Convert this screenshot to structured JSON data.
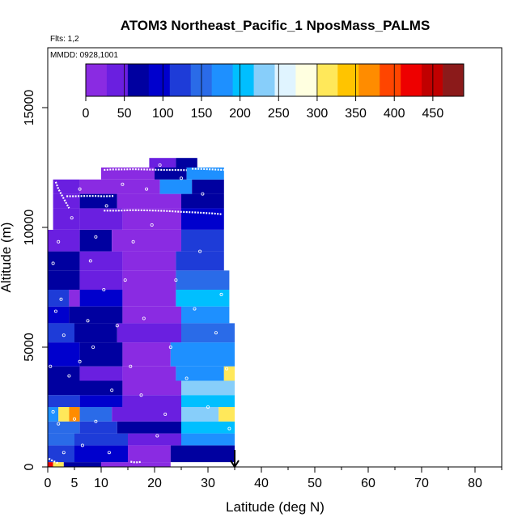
{
  "chart_data": {
    "type": "heatmap",
    "title": "ATOM3 Northeast_Pacific_1 NposMass_PALMS",
    "flights_label": "Flts: 1,2",
    "date_label": "MMDD: 0928,1001",
    "xlabel": "Latitude (deg N)",
    "ylabel": "Altitude (m)",
    "xlim": [
      0,
      85
    ],
    "ylim": [
      0,
      17500
    ],
    "x_ticks_major": [
      0,
      10,
      20,
      30,
      40,
      50,
      60,
      70,
      80
    ],
    "x_tick_labels": [
      "0",
      "5",
      "10",
      "20",
      "30",
      "40",
      "50",
      "60",
      "70",
      "80"
    ],
    "x_tick_label_values": [
      0,
      5,
      10,
      20,
      30,
      40,
      50,
      60,
      70,
      80
    ],
    "x_ticks_minor": [
      5,
      15,
      25,
      35,
      45,
      55,
      65,
      75,
      85
    ],
    "y_ticks": [
      0,
      5000,
      10000,
      15000
    ],
    "y_tick_labels": [
      "0",
      "5000",
      "10000",
      "15000"
    ],
    "colorbar": {
      "range": [
        0,
        490
      ],
      "tick_values": [
        0,
        50,
        100,
        150,
        200,
        250,
        300,
        350,
        400,
        450
      ],
      "tick_labels": [
        "0",
        "50",
        "100",
        "150",
        "200",
        "250",
        "300",
        "350",
        "400",
        "450"
      ],
      "colors": [
        "#8a2be2",
        "#6a1fe0",
        "#0000a0",
        "#0000cd",
        "#1e3cd8",
        "#2a6be8",
        "#1e90ff",
        "#00bfff",
        "#87cefa",
        "#e0f4ff",
        "#ffffe0",
        "#ffe85a",
        "#ffc400",
        "#ff8c00",
        "#ff4500",
        "#ee0000",
        "#c00000",
        "#8b1a1a"
      ]
    },
    "marker_latitude": 35,
    "bands": [
      {
        "y0": 0,
        "y1": 200,
        "x0": 0,
        "x1": 35,
        "segments": [
          [
            0,
            1,
            420
          ],
          [
            1,
            3,
            300
          ],
          [
            3,
            10,
            80
          ],
          [
            10,
            23,
            20
          ]
        ]
      },
      {
        "y0": 200,
        "y1": 900,
        "x0": 0,
        "x1": 35,
        "segments": [
          [
            0,
            5,
            130
          ],
          [
            5,
            15,
            100
          ],
          [
            15,
            23,
            15
          ],
          [
            23,
            35,
            70
          ]
        ]
      },
      {
        "y0": 900,
        "y1": 1400,
        "x0": 0,
        "x1": 35,
        "segments": [
          [
            0,
            5,
            160
          ],
          [
            5,
            15,
            120
          ],
          [
            15,
            25,
            40
          ],
          [
            25,
            35,
            170
          ]
        ]
      },
      {
        "y0": 1400,
        "y1": 1900,
        "x0": 0,
        "x1": 35,
        "segments": [
          [
            0,
            6,
            150
          ],
          [
            6,
            13,
            110
          ],
          [
            13,
            25,
            60
          ],
          [
            25,
            35,
            200
          ]
        ]
      },
      {
        "y0": 1900,
        "y1": 2500,
        "x0": 0,
        "x1": 35,
        "segments": [
          [
            0,
            2,
            170
          ],
          [
            2,
            4,
            300
          ],
          [
            4,
            6,
            360
          ],
          [
            6,
            12,
            160
          ],
          [
            12,
            25,
            50
          ],
          [
            25,
            32,
            240
          ],
          [
            32,
            35,
            320
          ]
        ]
      },
      {
        "y0": 2500,
        "y1": 3000,
        "x0": 0,
        "x1": 35,
        "segments": [
          [
            0,
            6,
            120
          ],
          [
            6,
            14,
            90
          ],
          [
            14,
            25,
            40
          ],
          [
            25,
            35,
            200
          ]
        ]
      },
      {
        "y0": 3000,
        "y1": 3600,
        "x0": 0,
        "x1": 35,
        "segments": [
          [
            0,
            5,
            80
          ],
          [
            5,
            14,
            60
          ],
          [
            14,
            25,
            20
          ],
          [
            25,
            35,
            220
          ]
        ]
      },
      {
        "y0": 3600,
        "y1": 4200,
        "x0": 0,
        "x1": 35,
        "segments": [
          [
            0,
            6,
            60
          ],
          [
            6,
            14,
            40
          ],
          [
            14,
            24,
            15
          ],
          [
            24,
            33,
            170
          ],
          [
            33,
            35,
            320
          ]
        ]
      },
      {
        "y0": 4200,
        "y1": 5200,
        "x0": 0,
        "x1": 35,
        "segments": [
          [
            0,
            6,
            90
          ],
          [
            6,
            14,
            70
          ],
          [
            14,
            23,
            20
          ],
          [
            23,
            35,
            180
          ]
        ]
      },
      {
        "y0": 5200,
        "y1": 6000,
        "x0": 0,
        "x1": 35,
        "segments": [
          [
            0,
            5,
            110
          ],
          [
            5,
            13,
            80
          ],
          [
            13,
            25,
            30
          ],
          [
            25,
            35,
            160
          ]
        ]
      },
      {
        "y0": 6000,
        "y1": 6700,
        "x0": 0,
        "x1": 34,
        "segments": [
          [
            0,
            4,
            100
          ],
          [
            4,
            14,
            70
          ],
          [
            14,
            25,
            25
          ],
          [
            25,
            34,
            170
          ]
        ]
      },
      {
        "y0": 6700,
        "y1": 7400,
        "x0": 0,
        "x1": 34,
        "segments": [
          [
            0,
            4,
            120
          ],
          [
            4,
            6,
            15
          ],
          [
            6,
            14,
            90
          ],
          [
            14,
            24,
            20
          ],
          [
            24,
            34,
            210
          ]
        ]
      },
      {
        "y0": 7400,
        "y1": 8200,
        "x0": 0,
        "x1": 34,
        "segments": [
          [
            0,
            6,
            80
          ],
          [
            6,
            14,
            50
          ],
          [
            14,
            24,
            20
          ],
          [
            24,
            34,
            160
          ]
        ]
      },
      {
        "y0": 8200,
        "y1": 9000,
        "x0": 0,
        "x1": 33,
        "segments": [
          [
            0,
            6,
            60
          ],
          [
            6,
            14,
            40
          ],
          [
            14,
            24,
            15
          ],
          [
            24,
            33,
            120
          ]
        ]
      },
      {
        "y0": 9000,
        "y1": 9900,
        "x0": 0,
        "x1": 33,
        "segments": [
          [
            0,
            6,
            50
          ],
          [
            6,
            12,
            60
          ],
          [
            12,
            25,
            15
          ],
          [
            25,
            33,
            110
          ]
        ]
      },
      {
        "y0": 9900,
        "y1": 10800,
        "x0": 1,
        "x1": 33,
        "segments": [
          [
            1,
            6,
            45
          ],
          [
            6,
            14,
            35
          ],
          [
            14,
            25,
            10
          ],
          [
            25,
            33,
            100
          ]
        ]
      },
      {
        "y0": 10800,
        "y1": 11400,
        "x0": 1,
        "x1": 33,
        "segments": [
          [
            1,
            6,
            30
          ],
          [
            6,
            13,
            70
          ],
          [
            13,
            25,
            15
          ],
          [
            25,
            33,
            80
          ]
        ]
      },
      {
        "y0": 11400,
        "y1": 12000,
        "x0": 1,
        "x1": 33,
        "segments": [
          [
            1,
            6,
            40
          ],
          [
            6,
            10,
            20
          ],
          [
            10,
            21,
            10
          ],
          [
            21,
            27,
            170
          ],
          [
            27,
            33,
            70
          ]
        ]
      },
      {
        "y0": 12000,
        "y1": 12500,
        "x0": 10,
        "x1": 33,
        "segments": [
          [
            10,
            20,
            15
          ],
          [
            20,
            26,
            80
          ],
          [
            26,
            33,
            180
          ]
        ]
      },
      {
        "y0": 12500,
        "y1": 12900,
        "x0": 19,
        "x1": 28,
        "segments": [
          [
            19,
            24,
            40
          ],
          [
            24,
            28,
            80
          ]
        ]
      }
    ],
    "flight_tracks": [
      {
        "x": [
          10.5,
          13,
          16,
          19,
          22,
          25,
          28,
          31,
          32.5
        ],
        "y": [
          10700,
          10700,
          10720,
          10710,
          10690,
          10650,
          10620,
          10580,
          10550
        ]
      },
      {
        "x": [
          3.5,
          5,
          7,
          9,
          10.5,
          12.5
        ],
        "y": [
          11300,
          11300,
          11310,
          11310,
          11300,
          11310
        ]
      },
      {
        "x": [
          10.5,
          12,
          14,
          16,
          18,
          20,
          22,
          24,
          26
        ],
        "y": [
          12400,
          12420,
          12420,
          12430,
          12420,
          12410,
          12400,
          12400,
          12390
        ]
      },
      {
        "x": [
          1.5,
          2,
          3,
          4
        ],
        "y": [
          11900,
          11600,
          11200,
          10800
        ]
      },
      {
        "x": [
          27,
          29,
          31,
          33
        ],
        "y": [
          12450,
          12440,
          12420,
          12400
        ]
      },
      {
        "x": [
          15.5,
          16,
          16.5,
          17,
          17.5
        ],
        "y": [
          220,
          200,
          190,
          200,
          210
        ]
      },
      {
        "x": [
          0.2,
          0.5,
          1,
          1.5,
          2
        ],
        "y": [
          350,
          300,
          250,
          200,
          150
        ]
      }
    ],
    "sample_points": [
      {
        "x": 2,
        "y": 1800
      },
      {
        "x": 1,
        "y": 2300
      },
      {
        "x": 4,
        "y": 3800
      },
      {
        "x": 0.5,
        "y": 4200
      },
      {
        "x": 3,
        "y": 5500
      },
      {
        "x": 2.5,
        "y": 7000
      },
      {
        "x": 1,
        "y": 8500
      },
      {
        "x": 2,
        "y": 9400
      },
      {
        "x": 5,
        "y": 2000
      },
      {
        "x": 6,
        "y": 4400
      },
      {
        "x": 7.5,
        "y": 6100
      },
      {
        "x": 8,
        "y": 8600
      },
      {
        "x": 9,
        "y": 9600
      },
      {
        "x": 8.5,
        "y": 5000
      },
      {
        "x": 9,
        "y": 1900
      },
      {
        "x": 12,
        "y": 3200
      },
      {
        "x": 13,
        "y": 5900
      },
      {
        "x": 14.5,
        "y": 7800
      },
      {
        "x": 15.5,
        "y": 4200
      },
      {
        "x": 16,
        "y": 9400
      },
      {
        "x": 17.5,
        "y": 3000
      },
      {
        "x": 18,
        "y": 6200
      },
      {
        "x": 19.5,
        "y": 10100
      },
      {
        "x": 20.5,
        "y": 1300
      },
      {
        "x": 22,
        "y": 2200
      },
      {
        "x": 23,
        "y": 5000
      },
      {
        "x": 24,
        "y": 7800
      },
      {
        "x": 26,
        "y": 3700
      },
      {
        "x": 27.5,
        "y": 6600
      },
      {
        "x": 28.5,
        "y": 9000
      },
      {
        "x": 30,
        "y": 2500
      },
      {
        "x": 31.5,
        "y": 5600
      },
      {
        "x": 32.5,
        "y": 7200
      },
      {
        "x": 33.5,
        "y": 4100
      },
      {
        "x": 34,
        "y": 1600
      },
      {
        "x": 4.5,
        "y": 10400
      },
      {
        "x": 6,
        "y": 11600
      },
      {
        "x": 11,
        "y": 10900
      },
      {
        "x": 14,
        "y": 11800
      },
      {
        "x": 18.5,
        "y": 11600
      },
      {
        "x": 21,
        "y": 12600
      },
      {
        "x": 25,
        "y": 12050
      },
      {
        "x": 29,
        "y": 11400
      },
      {
        "x": 3,
        "y": 600
      },
      {
        "x": 6.5,
        "y": 900
      },
      {
        "x": 11.5,
        "y": 600
      },
      {
        "x": 1.5,
        "y": 6500
      },
      {
        "x": 10.5,
        "y": 7400
      }
    ]
  }
}
